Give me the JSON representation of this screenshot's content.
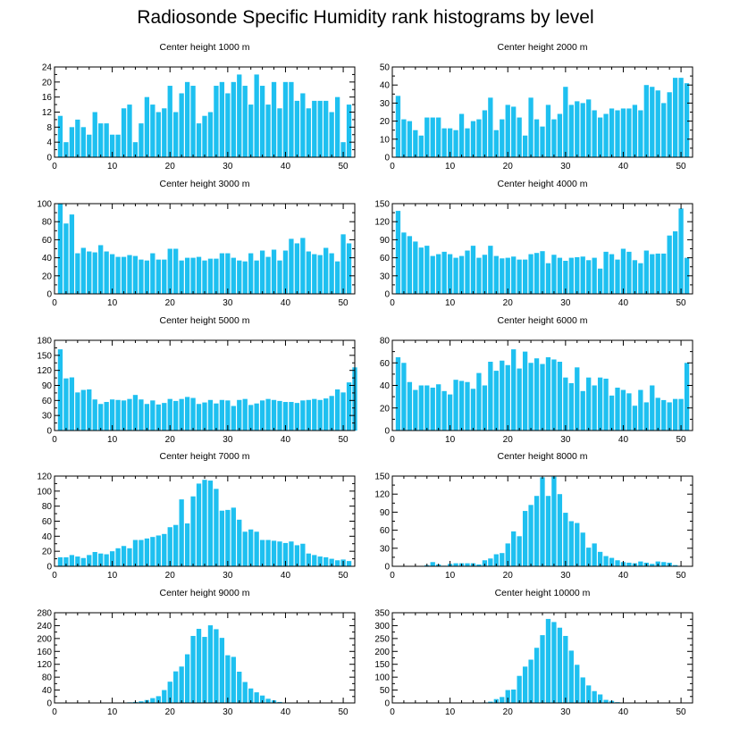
{
  "title": "Radiosonde Specific Humidity rank histograms by level",
  "bar_color": "#1ec0f0",
  "chart_data": [
    {
      "type": "bar",
      "title": "Center height 1000 m",
      "xlabel": "",
      "ylabel": "",
      "xlim": [
        0,
        52
      ],
      "ylim": [
        0,
        24
      ],
      "xticks": [
        0,
        10,
        20,
        30,
        40,
        50
      ],
      "yticks": [
        0,
        4,
        8,
        12,
        16,
        20,
        24
      ],
      "values": [
        11,
        4,
        8,
        10,
        8,
        6,
        12,
        9,
        9,
        6,
        6,
        13,
        14,
        4,
        9,
        16,
        14,
        12,
        13,
        19,
        12,
        17,
        20,
        19,
        9,
        11,
        12,
        19,
        20,
        17,
        20,
        22,
        19,
        14,
        22,
        19,
        14,
        20,
        13,
        20,
        20,
        15,
        17,
        13,
        15,
        15,
        15,
        12,
        16,
        4,
        14
      ]
    },
    {
      "type": "bar",
      "title": "Center height 2000 m",
      "xlabel": "",
      "ylabel": "",
      "xlim": [
        0,
        52
      ],
      "ylim": [
        0,
        50
      ],
      "xticks": [
        0,
        10,
        20,
        30,
        40,
        50
      ],
      "yticks": [
        0,
        10,
        20,
        30,
        40,
        50
      ],
      "values": [
        34,
        21,
        20,
        15,
        12,
        22,
        22,
        22,
        16,
        16,
        15,
        24,
        16,
        20,
        21,
        26,
        33,
        15,
        21,
        29,
        28,
        22,
        12,
        33,
        21,
        17,
        29,
        21,
        24,
        39,
        29,
        31,
        30,
        32,
        26,
        22,
        24,
        27,
        26,
        27,
        27,
        29,
        26,
        40,
        39,
        37,
        30,
        36,
        44,
        44,
        41
      ]
    },
    {
      "type": "bar",
      "title": "Center height 3000 m",
      "xlabel": "",
      "ylabel": "",
      "xlim": [
        0,
        52
      ],
      "ylim": [
        0,
        100
      ],
      "xticks": [
        0,
        10,
        20,
        30,
        40,
        50
      ],
      "yticks": [
        0,
        20,
        40,
        60,
        80,
        100
      ],
      "values": [
        100,
        78,
        88,
        45,
        51,
        47,
        46,
        54,
        47,
        44,
        41,
        41,
        43,
        42,
        38,
        37,
        45,
        38,
        38,
        50,
        50,
        37,
        40,
        40,
        41,
        37,
        39,
        39,
        45,
        45,
        40,
        37,
        36,
        45,
        37,
        48,
        41,
        49,
        37,
        48,
        61,
        56,
        62,
        47,
        44,
        43,
        51,
        45,
        36,
        66,
        56
      ]
    },
    {
      "type": "bar",
      "title": "Center height 4000 m",
      "xlabel": "",
      "ylabel": "",
      "xlim": [
        0,
        52
      ],
      "ylim": [
        0,
        150
      ],
      "xticks": [
        0,
        10,
        20,
        30,
        40,
        50
      ],
      "yticks": [
        0,
        30,
        60,
        90,
        120,
        150
      ],
      "values": [
        138,
        102,
        96,
        87,
        77,
        80,
        63,
        66,
        70,
        66,
        60,
        63,
        72,
        80,
        60,
        65,
        80,
        63,
        59,
        60,
        62,
        57,
        57,
        66,
        68,
        71,
        51,
        65,
        60,
        55,
        60,
        61,
        62,
        56,
        60,
        42,
        70,
        66,
        57,
        75,
        70,
        56,
        51,
        72,
        66,
        67,
        67,
        97,
        104,
        142,
        60
      ]
    },
    {
      "type": "bar",
      "title": "Center height 5000 m",
      "xlabel": "",
      "ylabel": "",
      "xlim": [
        0,
        52
      ],
      "ylim": [
        0,
        180
      ],
      "xticks": [
        0,
        10,
        20,
        30,
        40,
        50
      ],
      "yticks": [
        0,
        30,
        60,
        90,
        120,
        150,
        180
      ],
      "values": [
        162,
        104,
        106,
        76,
        81,
        82,
        62,
        53,
        57,
        62,
        61,
        60,
        63,
        71,
        62,
        53,
        60,
        52,
        55,
        63,
        59,
        63,
        67,
        65,
        53,
        56,
        61,
        54,
        61,
        60,
        49,
        61,
        63,
        51,
        54,
        60,
        63,
        61,
        59,
        57,
        57,
        55,
        60,
        61,
        63,
        61,
        64,
        69,
        82,
        76,
        96,
        126
      ]
    },
    {
      "type": "bar",
      "title": "Center height 6000 m",
      "xlabel": "",
      "ylabel": "",
      "xlim": [
        0,
        52
      ],
      "ylim": [
        0,
        80
      ],
      "xticks": [
        0,
        10,
        20,
        30,
        40,
        50
      ],
      "yticks": [
        0,
        20,
        40,
        60,
        80
      ],
      "values": [
        65,
        60,
        43,
        36,
        40,
        40,
        38,
        41,
        35,
        32,
        45,
        44,
        43,
        37,
        51,
        40,
        61,
        53,
        62,
        58,
        72,
        55,
        70,
        60,
        64,
        59,
        65,
        63,
        61,
        47,
        42,
        56,
        35,
        47,
        40,
        47,
        46,
        31,
        38,
        36,
        33,
        22,
        36,
        25,
        40,
        29,
        27,
        25,
        28,
        28,
        60
      ]
    },
    {
      "type": "bar",
      "title": "Center height 7000 m",
      "xlabel": "",
      "ylabel": "",
      "xlim": [
        0,
        52
      ],
      "ylim": [
        0,
        120
      ],
      "xticks": [
        0,
        10,
        20,
        30,
        40,
        50
      ],
      "yticks": [
        0,
        20,
        40,
        60,
        80,
        100,
        120
      ],
      "values": [
        12,
        12,
        15,
        13,
        11,
        15,
        19,
        17,
        16,
        20,
        24,
        27,
        24,
        35,
        35,
        37,
        39,
        41,
        43,
        52,
        55,
        89,
        57,
        93,
        110,
        115,
        114,
        103,
        74,
        75,
        78,
        62,
        46,
        49,
        46,
        35,
        35,
        34,
        33,
        31,
        33,
        28,
        30,
        17,
        15,
        13,
        12,
        10,
        8,
        9,
        7
      ]
    },
    {
      "type": "bar",
      "title": "Center height 8000 m",
      "xlabel": "",
      "ylabel": "",
      "xlim": [
        0,
        52
      ],
      "ylim": [
        0,
        150
      ],
      "xticks": [
        0,
        10,
        20,
        30,
        40,
        50
      ],
      "yticks": [
        0,
        30,
        60,
        90,
        120,
        150
      ],
      "values": [
        0,
        0,
        0,
        0,
        0,
        2,
        7,
        3,
        1,
        4,
        5,
        5,
        5,
        5,
        3,
        10,
        13,
        20,
        22,
        38,
        58,
        50,
        92,
        102,
        117,
        148,
        117,
        149,
        120,
        89,
        75,
        72,
        56,
        31,
        38,
        24,
        17,
        14,
        10,
        7,
        6,
        5,
        8,
        6,
        4,
        8,
        7,
        6,
        2,
        0,
        0
      ]
    },
    {
      "type": "bar",
      "title": "Center height 9000 m",
      "xlabel": "",
      "ylabel": "",
      "xlim": [
        0,
        52
      ],
      "ylim": [
        0,
        280
      ],
      "xticks": [
        0,
        10,
        20,
        30,
        40,
        50
      ],
      "yticks": [
        0,
        40,
        80,
        120,
        160,
        200,
        240,
        280
      ],
      "values": [
        0,
        0,
        0,
        0,
        0,
        0,
        0,
        0,
        0,
        0,
        0,
        1,
        2,
        3,
        5,
        9,
        15,
        21,
        40,
        66,
        98,
        113,
        151,
        208,
        230,
        205,
        241,
        229,
        202,
        148,
        143,
        97,
        65,
        45,
        33,
        23,
        13,
        8,
        3,
        1,
        1,
        0,
        0,
        0,
        0,
        0,
        0,
        0,
        0,
        0,
        0
      ]
    },
    {
      "type": "bar",
      "title": "Center height 10000 m",
      "xlabel": "",
      "ylabel": "",
      "xlim": [
        0,
        52
      ],
      "ylim": [
        0,
        350
      ],
      "xticks": [
        0,
        10,
        20,
        30,
        40,
        50
      ],
      "yticks": [
        0,
        50,
        100,
        150,
        200,
        250,
        300,
        350
      ],
      "values": [
        0,
        0,
        0,
        0,
        0,
        0,
        0,
        0,
        0,
        0,
        0,
        0,
        0,
        0,
        1,
        2,
        5,
        15,
        23,
        50,
        52,
        105,
        141,
        168,
        214,
        263,
        326,
        314,
        292,
        260,
        203,
        148,
        99,
        68,
        46,
        33,
        12,
        8,
        3,
        1,
        0,
        0,
        0,
        0,
        0,
        0,
        0,
        0,
        0,
        0,
        0
      ]
    }
  ]
}
